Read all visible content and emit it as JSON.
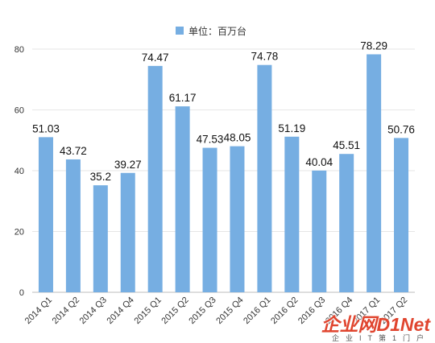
{
  "chart_data": {
    "type": "bar",
    "categories": [
      "2014 Q1",
      "2014 Q2",
      "2014 Q3",
      "2014 Q4",
      "2015 Q1",
      "2015 Q2",
      "2015 Q3",
      "2015 Q4",
      "2016 Q1",
      "2016 Q2",
      "2016 Q3",
      "2016 Q4",
      "2017 Q1",
      "2017 Q2"
    ],
    "series": [
      {
        "name": "单位：百万台",
        "values": [
          51.03,
          43.72,
          35.2,
          39.27,
          74.47,
          61.17,
          47.53,
          48.05,
          74.78,
          51.19,
          40.04,
          45.51,
          78.29,
          50.76
        ],
        "labels": [
          "51.03",
          "43.72",
          "35.2",
          "39.27",
          "74.47",
          "61.17",
          "47.53",
          "48.05",
          "74.78",
          "51.19",
          "40.04",
          "45.51",
          "78.29",
          "50.76"
        ]
      }
    ],
    "yticks": [
      "0",
      "20",
      "40",
      "60",
      "80"
    ],
    "ylim": [
      0,
      85
    ],
    "grid": true,
    "legend": "top-center",
    "bar_color": "#76aee2"
  },
  "watermark": {
    "main": "企业网D1Net",
    "sub": "企业IT第1门户"
  }
}
